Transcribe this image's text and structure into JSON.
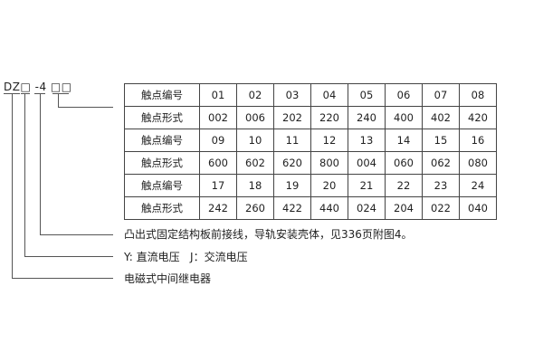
{
  "model_code": "DZ□ -4 □□",
  "table": [
    [
      "触点编号",
      "01",
      "02",
      "03",
      "04",
      "05",
      "06",
      "07",
      "08"
    ],
    [
      "触点形式",
      "002",
      "006",
      "202",
      "220",
      "240",
      "400",
      "402",
      "420"
    ],
    [
      "触点编号",
      "09",
      "10",
      "11",
      "12",
      "13",
      "14",
      "15",
      "16"
    ],
    [
      "触点形式",
      "600",
      "602",
      "620",
      "800",
      "004",
      "060",
      "062",
      "080"
    ],
    [
      "触点编号",
      "17",
      "18",
      "19",
      "20",
      "21",
      "22",
      "23",
      "24"
    ],
    [
      "触点形式",
      "242",
      "260",
      "422",
      "440",
      "024",
      "204",
      "022",
      "040"
    ]
  ],
  "notes": [
    "凸出式固定结构板前接线，导轨安装壳体，见336页附图4。",
    "Y: 直流电压   J：交流电压",
    "电磁式中间继电器"
  ]
}
